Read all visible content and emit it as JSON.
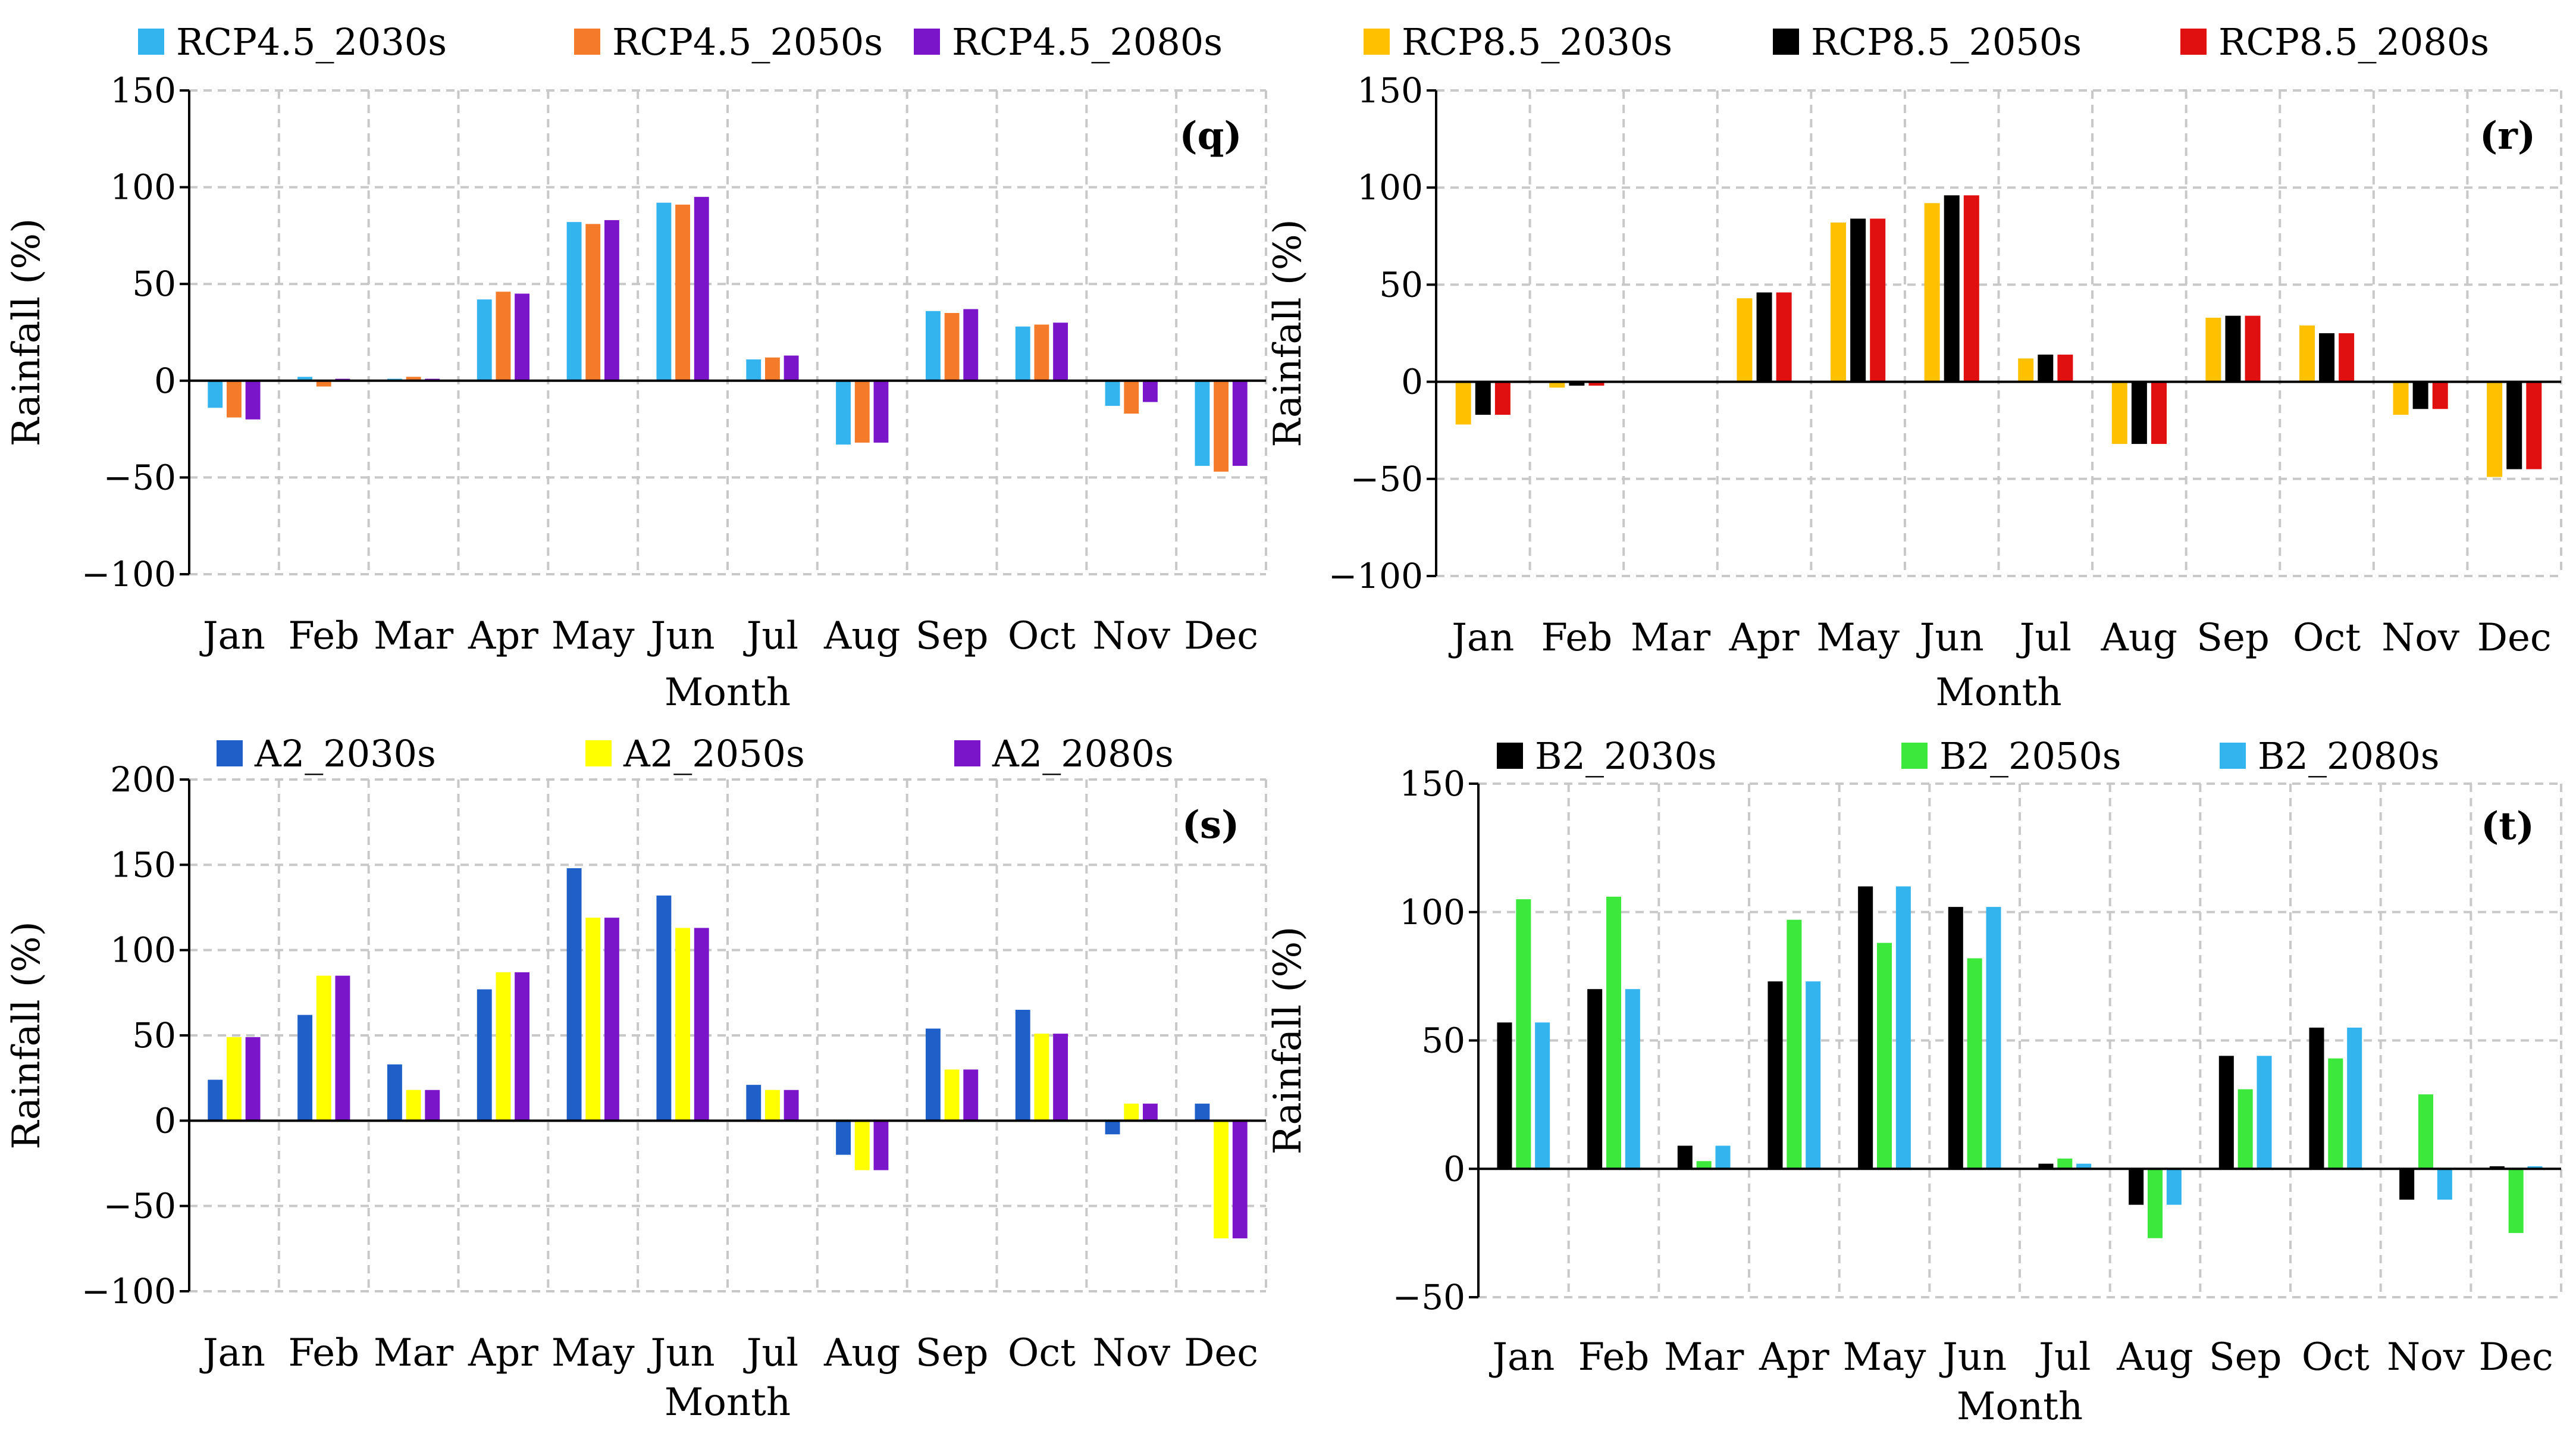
{
  "figure": {
    "months": [
      "Jan",
      "Feb",
      "Mar",
      "Apr",
      "May",
      "Jun",
      "Jul",
      "Aug",
      "Sep",
      "Oct",
      "Nov",
      "Dec"
    ]
  },
  "chart_data": [
    {
      "type": "bar",
      "panel": "(q)",
      "xlabel": "Month",
      "ylabel": "Rainfall (%)",
      "categories": [
        "Jan",
        "Feb",
        "Mar",
        "Apr",
        "May",
        "Jun",
        "Jul",
        "Aug",
        "Sep",
        "Oct",
        "Nov",
        "Dec"
      ],
      "ylim": [
        -100,
        150
      ],
      "yticks": [
        -100,
        -50,
        0,
        50,
        100,
        150
      ],
      "ytick_labels": [
        "−100",
        "−50",
        "0",
        "50",
        "100",
        "150"
      ],
      "grid": true,
      "legend_position": "top",
      "series": [
        {
          "name": "RCP4.5_2030s",
          "color": "#33b4ef",
          "values": [
            -14,
            2,
            1,
            42,
            82,
            92,
            11,
            -33,
            36,
            28,
            -13,
            -44
          ]
        },
        {
          "name": "RCP4.5_2050s",
          "color": "#f47b2a",
          "values": [
            -19,
            -3,
            2,
            46,
            81,
            91,
            12,
            -32,
            35,
            29,
            -17,
            -47
          ]
        },
        {
          "name": "RCP4.5_2080s",
          "color": "#7b15c9",
          "values": [
            -20,
            1,
            1,
            45,
            83,
            95,
            13,
            -32,
            37,
            30,
            -11,
            -44
          ]
        }
      ]
    },
    {
      "type": "bar",
      "panel": "(r)",
      "xlabel": "Month",
      "ylabel": "Rainfall (%)",
      "categories": [
        "Jan",
        "Feb",
        "Mar",
        "Apr",
        "May",
        "Jun",
        "Jul",
        "Aug",
        "Sep",
        "Oct",
        "Nov",
        "Dec"
      ],
      "ylim": [
        -100,
        150
      ],
      "yticks": [
        -100,
        -50,
        0,
        50,
        100,
        150
      ],
      "ytick_labels": [
        "−100",
        "−50",
        "0",
        "50",
        "100",
        "150"
      ],
      "grid": true,
      "legend_position": "top",
      "series": [
        {
          "name": "RCP8.5_2030s",
          "color": "#ffc000",
          "values": [
            -22,
            -3,
            0,
            43,
            82,
            92,
            12,
            -32,
            33,
            29,
            -17,
            -49
          ]
        },
        {
          "name": "RCP8.5_2050s",
          "color": "#000000",
          "values": [
            -17,
            -2,
            0,
            46,
            84,
            96,
            14,
            -32,
            34,
            25,
            -14,
            -45
          ]
        },
        {
          "name": "RCP8.5_2080s",
          "color": "#e01010",
          "values": [
            -17,
            -2,
            0,
            46,
            84,
            96,
            14,
            -32,
            34,
            25,
            -14,
            -45
          ]
        }
      ]
    },
    {
      "type": "bar",
      "panel": "(s)",
      "xlabel": "Month",
      "ylabel": "Rainfall (%)",
      "categories": [
        "Jan",
        "Feb",
        "Mar",
        "Apr",
        "May",
        "Jun",
        "Jul",
        "Aug",
        "Sep",
        "Oct",
        "Nov",
        "Dec"
      ],
      "ylim": [
        -100,
        200
      ],
      "yticks": [
        -100,
        -50,
        0,
        50,
        100,
        150,
        200
      ],
      "ytick_labels": [
        "−100",
        "−50",
        "0",
        "50",
        "100",
        "150",
        "200"
      ],
      "grid": true,
      "legend_position": "top",
      "series": [
        {
          "name": "A2_2030s",
          "color": "#1f5fc8",
          "values": [
            24,
            62,
            33,
            77,
            148,
            132,
            21,
            -20,
            54,
            65,
            -8,
            10
          ]
        },
        {
          "name": "A2_2050s",
          "color": "#ffff00",
          "values": [
            49,
            85,
            18,
            87,
            119,
            113,
            18,
            -29,
            30,
            51,
            10,
            -69
          ]
        },
        {
          "name": "A2_2080s",
          "color": "#7b15c9",
          "values": [
            49,
            85,
            18,
            87,
            119,
            113,
            18,
            -29,
            30,
            51,
            10,
            -69
          ]
        }
      ]
    },
    {
      "type": "bar",
      "panel": "(t)",
      "xlabel": "Month",
      "ylabel": "Rainfall (%)",
      "categories": [
        "Jan",
        "Feb",
        "Mar",
        "Apr",
        "May",
        "Jun",
        "Jul",
        "Aug",
        "Sep",
        "Oct",
        "Nov",
        "Dec"
      ],
      "ylim": [
        -50,
        150
      ],
      "yticks": [
        -50,
        0,
        50,
        100,
        150
      ],
      "ytick_labels": [
        "−50",
        "0",
        "50",
        "100",
        "150"
      ],
      "grid": true,
      "legend_position": "top",
      "series": [
        {
          "name": "B2_2030s",
          "color": "#000000",
          "values": [
            57,
            70,
            9,
            73,
            110,
            102,
            2,
            -14,
            44,
            55,
            -12,
            1
          ]
        },
        {
          "name": "B2_2050s",
          "color": "#3ce83c",
          "values": [
            105,
            106,
            3,
            97,
            88,
            82,
            4,
            -27,
            31,
            43,
            29,
            -25
          ]
        },
        {
          "name": "B2_2080s",
          "color": "#33b4ef",
          "values": [
            57,
            70,
            9,
            73,
            110,
            102,
            2,
            -14,
            44,
            55,
            -12,
            1
          ]
        }
      ]
    }
  ]
}
